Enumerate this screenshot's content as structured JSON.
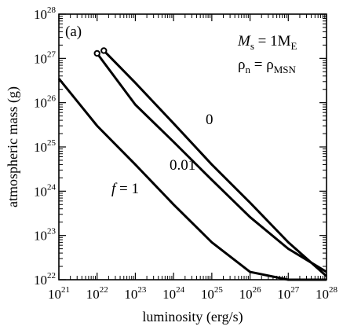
{
  "chart_data": {
    "type": "line",
    "xscale": "log",
    "yscale": "log",
    "xlim": [
      1e+21,
      1e+28
    ],
    "ylim": [
      1e+22,
      1e+28
    ],
    "xlabel": "luminosity (erg/s)",
    "ylabel": "atmospheric mass (g)",
    "panel_label": "(a)",
    "x_ticks": [
      "10^21",
      "10^22",
      "10^23",
      "10^24",
      "10^25",
      "10^26",
      "10^27",
      "10^28"
    ],
    "y_ticks": [
      "10^22",
      "10^23",
      "10^24",
      "10^25",
      "10^26",
      "10^27",
      "10^28"
    ],
    "annotations": {
      "line1_base": "M",
      "line1_sub": "s",
      "line1_rest": " = 1M",
      "line1_sub2": "E",
      "line2_base": "ρ",
      "line2_sub": "n",
      "line2_rest": " = ρ",
      "line2_sub2": "MSN"
    },
    "series": [
      {
        "name": "f = 1",
        "label_parts": {
          "italic": "f",
          "rest": " = 1"
        },
        "x": [
          1e+21,
          1e+22,
          1e+23,
          1e+24,
          1e+25,
          1e+26,
          1e+27,
          1e+28
        ],
        "y": [
          3.5e+26,
          3e+25,
          4e+24,
          5e+23,
          7e+22,
          1.5e+22,
          1e+22,
          1e+22
        ]
      },
      {
        "name": "0.01",
        "x": [
          1e+22,
          1e+23,
          1e+24,
          1e+25,
          1e+26,
          1e+27,
          1e+28
        ],
        "y": [
          1.3e+27,
          9e+25,
          1.3e+25,
          1.8e+24,
          2.6e+23,
          5e+22,
          1.5e+22
        ],
        "endpoint_marker": "open-circle"
      },
      {
        "name": "0",
        "x": [
          1.5e+22,
          1e+23,
          1e+24,
          1e+25,
          1e+26,
          1e+27,
          1e+28
        ],
        "y": [
          1.5e+27,
          2.8e+26,
          3.4e+25,
          4e+24,
          5.5e+23,
          7e+22,
          1.2e+22
        ],
        "endpoint_marker": "open-circle"
      }
    ]
  }
}
